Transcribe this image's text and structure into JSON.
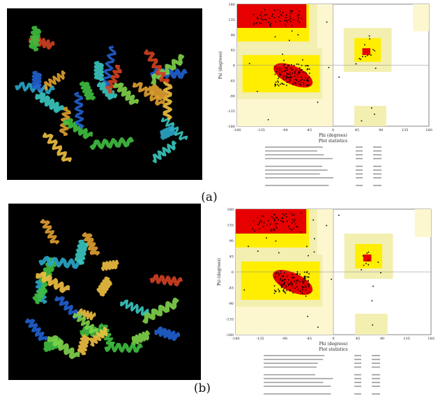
{
  "panels": [
    {
      "label": "(a)",
      "plot": {
        "x_label": "Phi (degrees)",
        "y_label": "Psi (degrees)",
        "subtitle": "Plot statistics",
        "xticks": [
          "-180",
          "-135",
          "-90",
          "-45",
          "0",
          "45",
          "90",
          "135",
          "180"
        ],
        "yticks": [
          "180",
          "135",
          "90",
          "45",
          "0",
          "-45",
          "-90",
          "-135",
          "-180"
        ]
      }
    },
    {
      "label": "(b)",
      "plot": {
        "x_label": "Phi (degrees)",
        "y_label": "Psi (degrees)",
        "subtitle": "Plot statistics",
        "xticks": [
          "-180",
          "-135",
          "-90",
          "-45",
          "0",
          "45",
          "90",
          "135",
          "180"
        ],
        "yticks": [
          "180",
          "135",
          "90",
          "45",
          "0",
          "-45",
          "-90",
          "-135",
          "-180"
        ]
      }
    }
  ]
}
